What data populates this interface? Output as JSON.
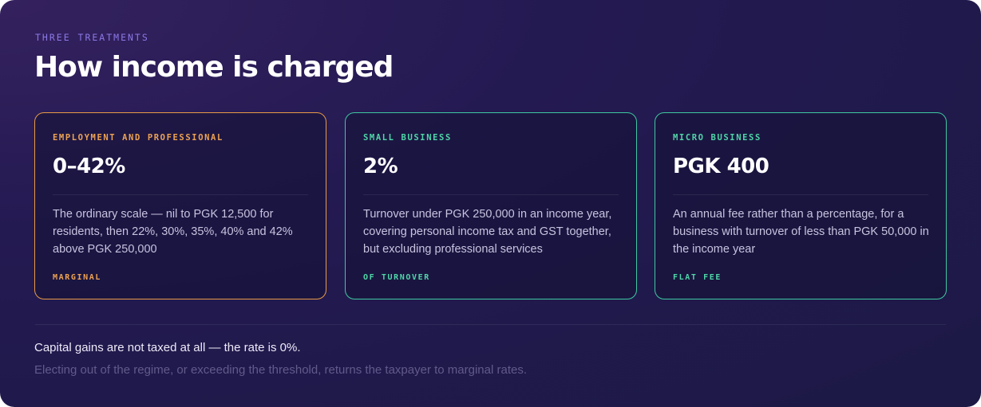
{
  "header": {
    "eyebrow": "THREE TREATMENTS",
    "title": "How income is charged"
  },
  "cards": [
    {
      "label": "EMPLOYMENT AND PROFESSIONAL",
      "figure": "0–42%",
      "description": "The ordinary scale — nil to PGK 12,500 for residents, then 22%, 30%, 35%, 40% and 42% above PGK 250,000",
      "tag": "MARGINAL",
      "accent": "#e89a45"
    },
    {
      "label": "SMALL BUSINESS",
      "figure": "2%",
      "description": "Turnover under PGK 250,000 in an income year, covering personal income tax and GST together, but excluding professional services",
      "tag": "OF TURNOVER",
      "accent": "#3ec9a0"
    },
    {
      "label": "MICRO BUSINESS",
      "figure": "PGK 400",
      "description": "An annual fee rather than a percentage, for a business with turnover of less than PGK 50,000 in the income year",
      "tag": "FLAT FEE",
      "accent": "#3ec9a0"
    }
  ],
  "footer": {
    "note": "Capital gains are not taxed at all — the rate is 0%.",
    "subnote": "Electing out of the regime, or exceeding the threshold, returns the taxpayer to marginal rates."
  },
  "colors": {
    "background": "#241a52",
    "eyebrow": "#8b78e6",
    "warm_accent": "#e89a45",
    "cool_accent": "#3ec9a0"
  }
}
